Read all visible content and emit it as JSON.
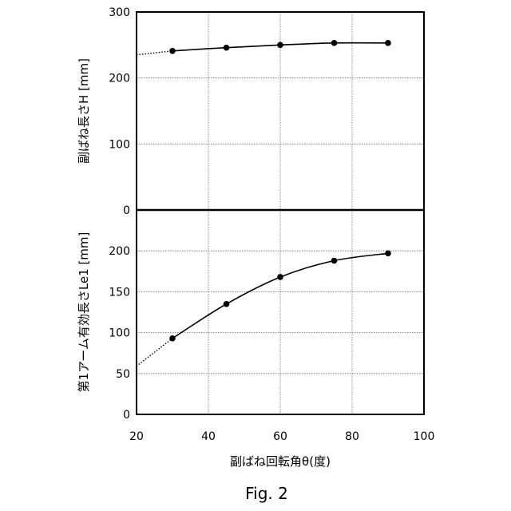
{
  "caption": "Fig. 2",
  "chart_data": [
    {
      "type": "line",
      "position": "top",
      "xlim": [
        20,
        100
      ],
      "ylim": [
        0,
        300
      ],
      "yticks": [
        0,
        100,
        200,
        300
      ],
      "ylabel": "副ばね長さH [mm]",
      "grid": true,
      "series": [
        {
          "x": [
            30,
            45,
            60,
            75,
            90
          ],
          "y": [
            241,
            246,
            250,
            253,
            253
          ],
          "extrapolation_dotted": {
            "x": [
              20,
              30
            ],
            "y": [
              235,
              241
            ]
          }
        }
      ]
    },
    {
      "type": "line",
      "position": "bottom",
      "xlim": [
        20,
        100
      ],
      "ylim": [
        0,
        250
      ],
      "yticks": [
        0,
        50,
        100,
        150,
        200
      ],
      "xticks": [
        20,
        40,
        60,
        80,
        100
      ],
      "ylabel": "第1アーム有効長さLe1 [mm]",
      "xlabel": "副ばね回転角θ(度)",
      "grid": true,
      "series": [
        {
          "x": [
            30,
            45,
            60,
            75,
            90
          ],
          "y": [
            93,
            135,
            168,
            188,
            197
          ],
          "extrapolation_dotted": {
            "x": [
              20,
              30
            ],
            "y": [
              59,
              93
            ]
          }
        }
      ]
    }
  ]
}
